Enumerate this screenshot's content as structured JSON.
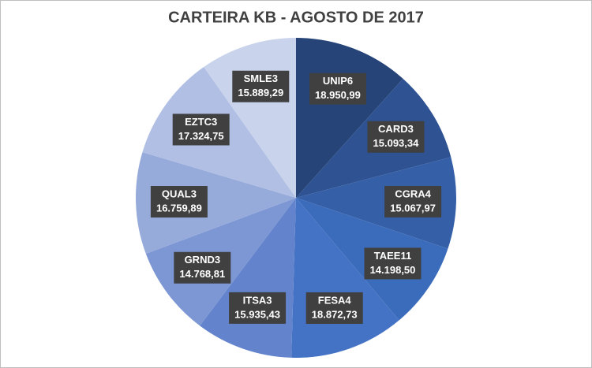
{
  "chart_data": {
    "type": "pie",
    "title": "CARTEIRA KB - AGOSTO DE 2017",
    "categories": [
      "UNIP6",
      "CARD3",
      "CGRA4",
      "TAEE11",
      "FESA4",
      "ITSA3",
      "GRND3",
      "QUAL3",
      "EZTC3",
      "SMLE3"
    ],
    "values": [
      18950.99,
      15093.34,
      15067.97,
      14198.5,
      18872.73,
      15935.43,
      14768.81,
      16759.89,
      17324.75,
      15889.29
    ],
    "value_labels": [
      "18.950,99",
      "15.093,34",
      "15.067,97",
      "14.198,50",
      "18.872,73",
      "15.935,43",
      "14.768,81",
      "16.759,89",
      "17.324,75",
      "15.889,29"
    ],
    "colors": [
      "#264478",
      "#2e5292",
      "#3560a8",
      "#3b6cbb",
      "#4472c4",
      "#6384cc",
      "#7d97d4",
      "#97abdb",
      "#b0bfe3",
      "#c9d3ec"
    ]
  }
}
